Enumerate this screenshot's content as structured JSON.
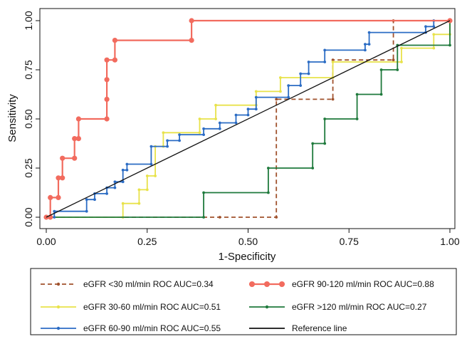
{
  "chart_data": {
    "type": "line",
    "title": "",
    "xlabel": "1-Specificity",
    "ylabel": "Sensitivity",
    "xlim": [
      0,
      1
    ],
    "ylim": [
      0,
      1
    ],
    "x_ticks": [
      "0.00",
      "0.25",
      "0.50",
      "0.75",
      "1.00"
    ],
    "y_ticks": [
      "0.00",
      "0.25",
      "0.50",
      "0.75",
      "1.00"
    ],
    "grid": false,
    "legend_position": "bottom",
    "series": [
      {
        "name": "eGFR <30 ml/min ROC AUC=0.34",
        "color": "#a0522d",
        "style": "dashed",
        "marker": "small-dot",
        "points": [
          [
            0.0,
            0.0
          ],
          [
            0.43,
            0.0
          ],
          [
            0.57,
            0.0
          ],
          [
            0.57,
            0.6
          ],
          [
            0.71,
            0.6
          ],
          [
            0.71,
            0.8
          ],
          [
            0.86,
            0.8
          ],
          [
            0.86,
            1.0
          ],
          [
            1.0,
            1.0
          ]
        ]
      },
      {
        "name": "eGFR 30-60 ml/min ROC AUC=0.51",
        "color": "#e8e24a",
        "style": "solid",
        "marker": "small-dot",
        "points": [
          [
            0.0,
            0.0
          ],
          [
            0.19,
            0.0
          ],
          [
            0.19,
            0.07
          ],
          [
            0.23,
            0.07
          ],
          [
            0.23,
            0.14
          ],
          [
            0.25,
            0.14
          ],
          [
            0.25,
            0.21
          ],
          [
            0.27,
            0.21
          ],
          [
            0.27,
            0.36
          ],
          [
            0.29,
            0.36
          ],
          [
            0.29,
            0.43
          ],
          [
            0.38,
            0.43
          ],
          [
            0.38,
            0.5
          ],
          [
            0.42,
            0.5
          ],
          [
            0.42,
            0.57
          ],
          [
            0.52,
            0.57
          ],
          [
            0.52,
            0.64
          ],
          [
            0.58,
            0.64
          ],
          [
            0.58,
            0.71
          ],
          [
            0.71,
            0.71
          ],
          [
            0.71,
            0.79
          ],
          [
            0.88,
            0.79
          ],
          [
            0.88,
            0.86
          ],
          [
            0.96,
            0.86
          ],
          [
            0.96,
            0.93
          ],
          [
            1.0,
            0.93
          ],
          [
            1.0,
            1.0
          ]
        ]
      },
      {
        "name": "eGFR 60-90 ml/min ROC AUC=0.55",
        "color": "#2b6cc4",
        "style": "solid",
        "marker": "small-dot",
        "points": [
          [
            0.0,
            0.0
          ],
          [
            0.02,
            0.0
          ],
          [
            0.02,
            0.03
          ],
          [
            0.1,
            0.03
          ],
          [
            0.1,
            0.09
          ],
          [
            0.12,
            0.09
          ],
          [
            0.12,
            0.12
          ],
          [
            0.15,
            0.12
          ],
          [
            0.15,
            0.15
          ],
          [
            0.17,
            0.15
          ],
          [
            0.17,
            0.18
          ],
          [
            0.19,
            0.18
          ],
          [
            0.19,
            0.24
          ],
          [
            0.2,
            0.24
          ],
          [
            0.2,
            0.27
          ],
          [
            0.26,
            0.27
          ],
          [
            0.26,
            0.36
          ],
          [
            0.3,
            0.36
          ],
          [
            0.3,
            0.39
          ],
          [
            0.33,
            0.39
          ],
          [
            0.33,
            0.42
          ],
          [
            0.39,
            0.42
          ],
          [
            0.39,
            0.45
          ],
          [
            0.43,
            0.45
          ],
          [
            0.43,
            0.48
          ],
          [
            0.47,
            0.48
          ],
          [
            0.47,
            0.52
          ],
          [
            0.5,
            0.52
          ],
          [
            0.5,
            0.55
          ],
          [
            0.52,
            0.55
          ],
          [
            0.52,
            0.61
          ],
          [
            0.6,
            0.61
          ],
          [
            0.6,
            0.67
          ],
          [
            0.63,
            0.67
          ],
          [
            0.63,
            0.73
          ],
          [
            0.65,
            0.73
          ],
          [
            0.65,
            0.79
          ],
          [
            0.69,
            0.79
          ],
          [
            0.69,
            0.85
          ],
          [
            0.79,
            0.85
          ],
          [
            0.79,
            0.88
          ],
          [
            0.8,
            0.88
          ],
          [
            0.8,
            0.94
          ],
          [
            0.94,
            0.94
          ],
          [
            0.94,
            0.97
          ],
          [
            0.96,
            0.97
          ],
          [
            0.96,
            1.0
          ],
          [
            1.0,
            1.0
          ]
        ]
      },
      {
        "name": "eGFR 90-120 ml/min ROC AUC=0.88",
        "color": "#f26b5e",
        "style": "solid",
        "marker": "large-dot",
        "points": [
          [
            0.0,
            0.0
          ],
          [
            0.01,
            0.0
          ],
          [
            0.01,
            0.1
          ],
          [
            0.03,
            0.1
          ],
          [
            0.03,
            0.2
          ],
          [
            0.04,
            0.2
          ],
          [
            0.04,
            0.3
          ],
          [
            0.07,
            0.3
          ],
          [
            0.07,
            0.4
          ],
          [
            0.08,
            0.4
          ],
          [
            0.08,
            0.5
          ],
          [
            0.15,
            0.5
          ],
          [
            0.15,
            0.6
          ],
          [
            0.15,
            0.7
          ],
          [
            0.15,
            0.8
          ],
          [
            0.17,
            0.8
          ],
          [
            0.17,
            0.9
          ],
          [
            0.36,
            0.9
          ],
          [
            0.36,
            1.0
          ],
          [
            1.0,
            1.0
          ]
        ]
      },
      {
        "name": "eGFR >120 ml/min ROC AUC=0.27",
        "color": "#1f7a3c",
        "style": "solid",
        "marker": "small-dot",
        "points": [
          [
            0.0,
            0.0
          ],
          [
            0.39,
            0.0
          ],
          [
            0.39,
            0.125
          ],
          [
            0.55,
            0.125
          ],
          [
            0.55,
            0.25
          ],
          [
            0.66,
            0.25
          ],
          [
            0.66,
            0.375
          ],
          [
            0.69,
            0.375
          ],
          [
            0.69,
            0.5
          ],
          [
            0.77,
            0.5
          ],
          [
            0.77,
            0.625
          ],
          [
            0.83,
            0.625
          ],
          [
            0.83,
            0.75
          ],
          [
            0.87,
            0.75
          ],
          [
            0.87,
            0.875
          ],
          [
            1.0,
            0.875
          ],
          [
            1.0,
            1.0
          ]
        ]
      },
      {
        "name": "Reference line",
        "color": "#111111",
        "style": "solid",
        "marker": "none",
        "points": [
          [
            0.0,
            0.0
          ],
          [
            1.0,
            1.0
          ]
        ]
      }
    ]
  }
}
